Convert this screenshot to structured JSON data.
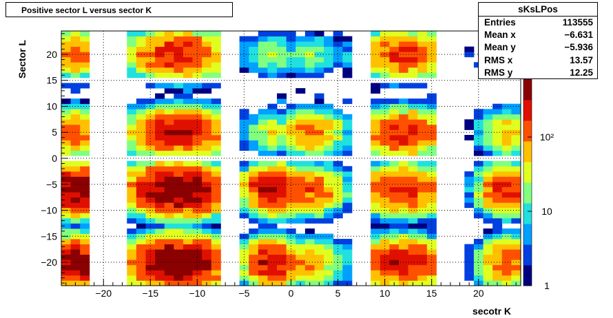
{
  "chart_data": {
    "type": "heatmap",
    "title": "Positive sector L versus sector K",
    "xlabel": "secotr K",
    "ylabel": "Sector L",
    "xlim": [
      -24.5,
      24.5
    ],
    "ylim": [
      -24.5,
      24.5
    ],
    "x_ticks": [
      -20,
      -15,
      -10,
      -5,
      0,
      5,
      10,
      15,
      20
    ],
    "y_ticks": [
      -20,
      -15,
      -10,
      -5,
      0,
      5,
      10,
      15,
      20
    ],
    "z_scale": "log",
    "zlim": [
      1,
      600
    ],
    "z_ticks": [
      {
        "value": 1,
        "label": "1"
      },
      {
        "value": 10,
        "label": "10"
      },
      {
        "value": 100,
        "label": "10²"
      }
    ],
    "grid": true,
    "palette": [
      "#00007f",
      "#0040e0",
      "#00a0ff",
      "#20e0e0",
      "#80ff80",
      "#e0ff20",
      "#ffc000",
      "#ff5000",
      "#e01000",
      "#8b0000"
    ],
    "grid_region_x": [
      [
        -24,
        -22
      ],
      [
        -17,
        -8
      ],
      [
        -5,
        -1
      ],
      [
        0,
        6
      ],
      [
        9,
        15
      ],
      [
        19,
        24
      ]
    ],
    "grid_region_y": [
      [
        -24,
        -17
      ],
      [
        -16,
        -10
      ],
      [
        -9,
        -1
      ],
      [
        1,
        8
      ],
      [
        9,
        14
      ],
      [
        16,
        24
      ]
    ],
    "clusters": [
      {
        "cx": -12,
        "cy": -20,
        "sx": 2.6,
        "sy": 2.3,
        "peak": 600
      },
      {
        "cx": -12,
        "cy": -6,
        "sx": 2.6,
        "sy": 2.3,
        "peak": 600
      },
      {
        "cx": -12,
        "cy": 5,
        "sx": 2.5,
        "sy": 2.2,
        "peak": 300
      },
      {
        "cx": -12,
        "cy": 20,
        "sx": 2.5,
        "sy": 2.2,
        "peak": 250
      },
      {
        "cx": -23,
        "cy": -20,
        "sx": 1.6,
        "sy": 2.3,
        "peak": 450
      },
      {
        "cx": -23,
        "cy": -6,
        "sx": 1.6,
        "sy": 2.3,
        "peak": 450
      },
      {
        "cx": -23,
        "cy": 5,
        "sx": 1.5,
        "sy": 2.2,
        "peak": 120
      },
      {
        "cx": -23,
        "cy": 20,
        "sx": 1.5,
        "sy": 2.2,
        "peak": 120
      },
      {
        "cx": -2,
        "cy": -20,
        "sx": 1.5,
        "sy": 2.2,
        "peak": 300
      },
      {
        "cx": -2,
        "cy": -6,
        "sx": 1.5,
        "sy": 2.2,
        "peak": 350
      },
      {
        "cx": -2,
        "cy": 5,
        "sx": 1.3,
        "sy": 2.0,
        "peak": 40
      },
      {
        "cx": -2,
        "cy": 20,
        "sx": 1.3,
        "sy": 2.0,
        "peak": 30
      },
      {
        "cx": 2,
        "cy": -20,
        "sx": 1.8,
        "sy": 2.2,
        "peak": 80
      },
      {
        "cx": 2,
        "cy": -6,
        "sx": 1.8,
        "sy": 2.2,
        "peak": 150
      },
      {
        "cx": 2,
        "cy": 5,
        "sx": 1.8,
        "sy": 2.0,
        "peak": 120
      },
      {
        "cx": 2,
        "cy": 20,
        "sx": 1.8,
        "sy": 2.0,
        "peak": 20
      },
      {
        "cx": 12,
        "cy": -20,
        "sx": 2.4,
        "sy": 2.3,
        "peak": 250
      },
      {
        "cx": 12,
        "cy": -6,
        "sx": 2.4,
        "sy": 2.3,
        "peak": 200
      },
      {
        "cx": 12,
        "cy": 5,
        "sx": 2.3,
        "sy": 2.2,
        "peak": 200
      },
      {
        "cx": 12,
        "cy": 20,
        "sx": 2.3,
        "sy": 2.2,
        "peak": 180
      },
      {
        "cx": 23,
        "cy": -20,
        "sx": 1.5,
        "sy": 2.3,
        "peak": 150
      },
      {
        "cx": 23,
        "cy": -6,
        "sx": 1.5,
        "sy": 2.3,
        "peak": 200
      },
      {
        "cx": 23,
        "cy": 5,
        "sx": 1.5,
        "sy": 2.2,
        "peak": 60
      },
      {
        "cx": 23,
        "cy": 20,
        "sx": 1.5,
        "sy": 2.2,
        "peak": 5
      }
    ]
  },
  "stats": {
    "name": "sKsLPos",
    "rows": [
      {
        "k": "Entries",
        "v": "113555"
      },
      {
        "k": "Mean x",
        "v": "−6.631"
      },
      {
        "k": "Mean y",
        "v": "−5.936"
      },
      {
        "k": "RMS x",
        "v": "13.57"
      },
      {
        "k": "RMS y",
        "v": "12.25"
      }
    ]
  }
}
